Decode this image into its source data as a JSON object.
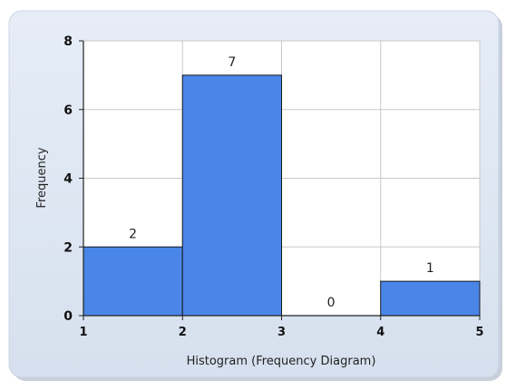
{
  "chart_data": {
    "type": "bar",
    "bins": [
      {
        "from": 1,
        "to": 2,
        "value": 2,
        "label": "2"
      },
      {
        "from": 2,
        "to": 3,
        "value": 7,
        "label": "7"
      },
      {
        "from": 3,
        "to": 4,
        "value": 0,
        "label": "0"
      },
      {
        "from": 4,
        "to": 5,
        "value": 1,
        "label": "1"
      }
    ],
    "xlabel": "Histogram (Frequency Diagram)",
    "ylabel": "Frequency",
    "xlim": [
      1,
      5
    ],
    "ylim": [
      0,
      8
    ],
    "x_ticks": [
      "1",
      "2",
      "3",
      "4",
      "5"
    ],
    "y_ticks": [
      "0",
      "2",
      "4",
      "6",
      "8"
    ],
    "grid": true,
    "bar_color": "#4a86e8",
    "bar_edge_color": "#1a1a1a",
    "panel_color": "#dde6f3"
  }
}
